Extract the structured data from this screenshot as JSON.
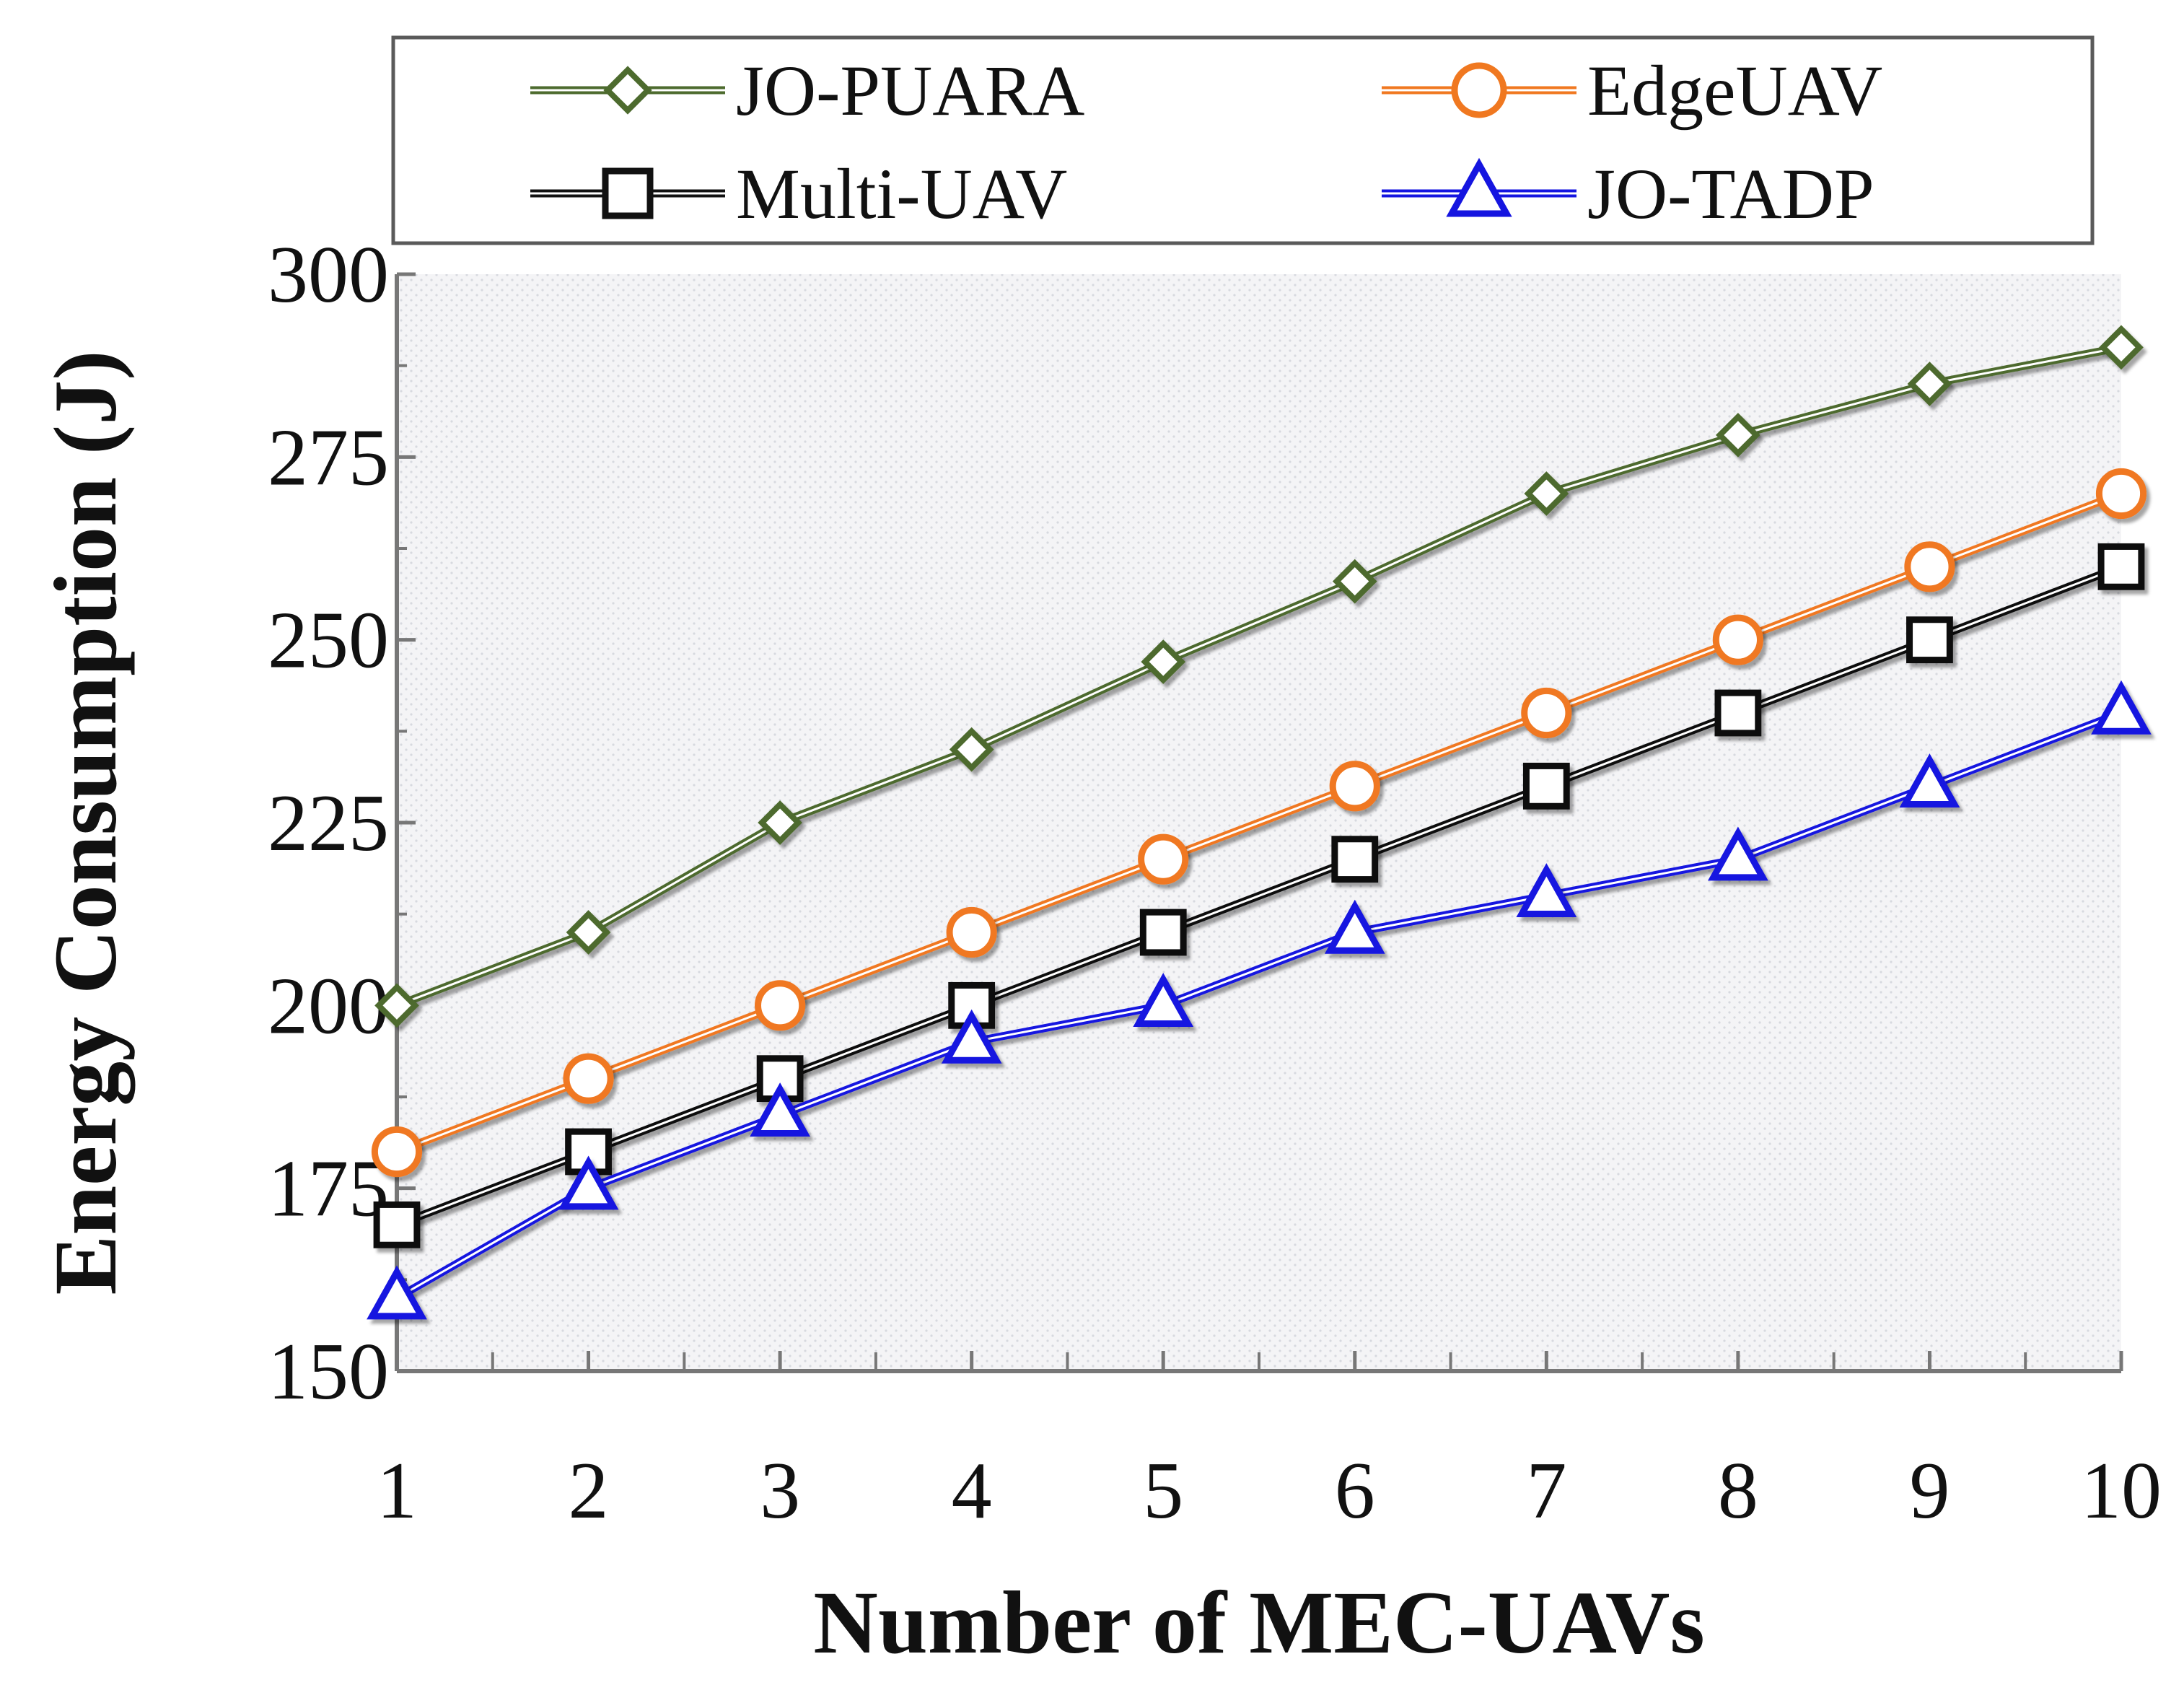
{
  "chart_data": {
    "type": "line",
    "title": "",
    "xlabel": "Number of MEC-UAVs",
    "ylabel": "Energy Consumption (J)",
    "x": [
      1,
      2,
      3,
      4,
      5,
      6,
      7,
      8,
      9,
      10
    ],
    "xticks": [
      "1",
      "2",
      "3",
      "4",
      "5",
      "6",
      "7",
      "8",
      "9",
      "10"
    ],
    "ylim": [
      150,
      300
    ],
    "yticks": [
      "150",
      "175",
      "200",
      "225",
      "250",
      "275",
      "300"
    ],
    "grid": false,
    "legend_position": "top",
    "series": [
      {
        "name": "JO-PUARA",
        "marker": "diamond",
        "color": "#4d6b2e",
        "values": [
          200,
          210,
          225,
          235,
          247,
          258,
          270,
          278,
          285,
          290
        ]
      },
      {
        "name": "EdgeUAV",
        "marker": "circle",
        "color": "#f07820",
        "values": [
          180,
          190,
          200,
          210,
          220,
          230,
          240,
          250,
          260,
          270
        ]
      },
      {
        "name": "Multi-UAV",
        "marker": "square",
        "color": "#111111",
        "values": [
          170,
          180,
          190,
          200,
          210,
          220,
          230,
          240,
          250,
          260
        ]
      },
      {
        "name": "JO-TADP",
        "marker": "triangle",
        "color": "#1515e0",
        "values": [
          160,
          175,
          185,
          195,
          200,
          210,
          215,
          220,
          230,
          240
        ]
      }
    ]
  }
}
